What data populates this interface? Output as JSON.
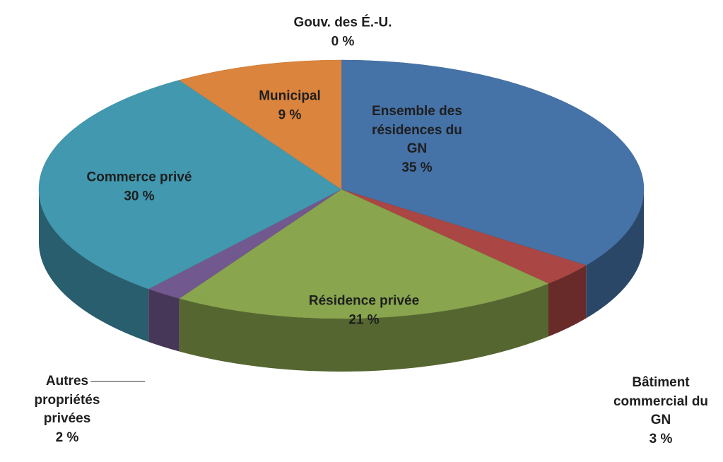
{
  "chart_data": {
    "type": "pie3d",
    "categories": [
      "Ensemble des résidences du GN",
      "Bâtiment commercial du GN",
      "Résidence privée",
      "Autres propriétés privées",
      "Commerce privé",
      "Municipal",
      "Gouv. des É.-U."
    ],
    "values": [
      35,
      3,
      21,
      2,
      30,
      9,
      0
    ],
    "value_labels": [
      "35 %",
      "3 %",
      "21 %",
      "2 %",
      "30 %",
      "9 %",
      "0 %"
    ],
    "colors": [
      "#4572a7",
      "#aa4643",
      "#89a54e",
      "#71588f",
      "#4198af",
      "#db843d",
      "#93a9cf"
    ]
  }
}
